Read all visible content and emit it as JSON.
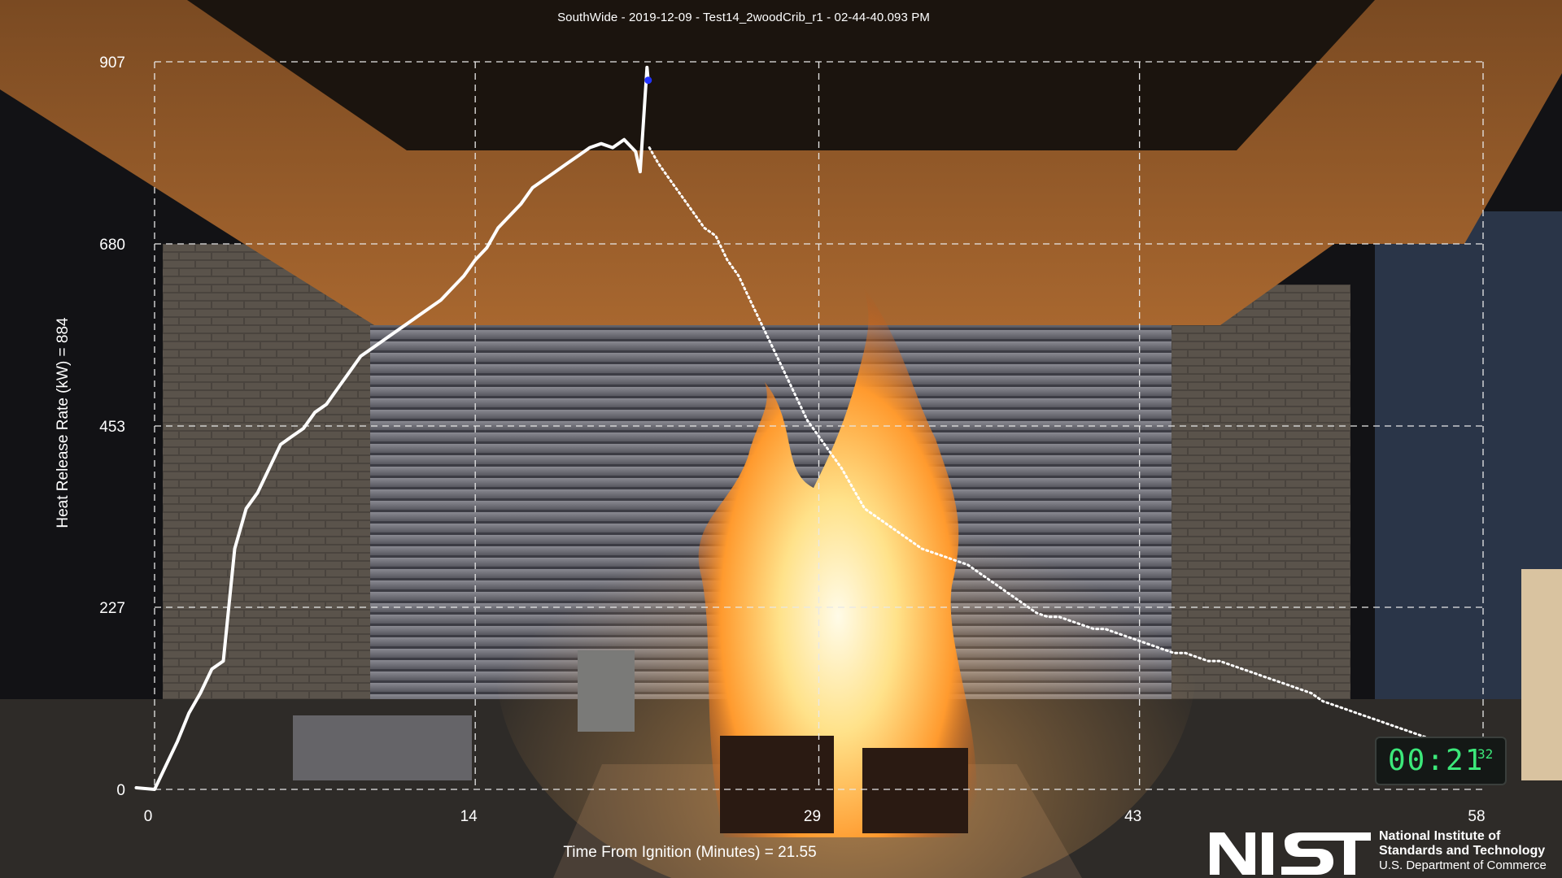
{
  "chart_data": {
    "type": "line",
    "title": "SouthWide - 2019-12-09 - Test14_2woodCrib_r1 - 02-44-40.093 PM",
    "ylabel": "Heat Release Rate (kW) = 884",
    "xlabel": "Time From Ignition (Minutes) = 21.55",
    "xlim": [
      0,
      58
    ],
    "ylim": [
      0,
      907
    ],
    "x_ticks": [
      0,
      14,
      29,
      43,
      58
    ],
    "y_ticks": [
      0,
      227,
      453,
      680,
      907
    ],
    "grid": true,
    "current_x": 21.55,
    "current_y": 884,
    "series": [
      {
        "style": "solid",
        "x": [
          -0.8,
          0,
          0.5,
          1,
          1.5,
          2,
          2.5,
          3,
          3.5,
          4,
          4.5,
          5,
          5.5,
          6,
          6.5,
          7,
          7.5,
          8,
          8.5,
          9,
          9.5,
          10,
          10.5,
          11,
          11.5,
          12,
          12.5,
          13,
          13.5,
          14,
          14.5,
          15,
          15.5,
          16,
          16.5,
          17,
          17.5,
          18,
          18.5,
          19,
          19.5,
          20,
          20.5,
          21,
          21.2,
          21.5,
          21.55
        ],
        "values": [
          2,
          0,
          30,
          60,
          95,
          120,
          150,
          160,
          300,
          350,
          370,
          400,
          430,
          440,
          450,
          470,
          480,
          500,
          520,
          540,
          550,
          560,
          570,
          580,
          590,
          600,
          610,
          625,
          640,
          660,
          675,
          700,
          715,
          730,
          750,
          760,
          770,
          780,
          790,
          800,
          805,
          800,
          810,
          795,
          770,
          900,
          884
        ]
      },
      {
        "style": "dotted",
        "x": [
          21.6,
          22,
          22.5,
          23,
          23.5,
          24,
          24.5,
          25,
          25.5,
          26,
          26.5,
          27,
          27.5,
          28,
          28.5,
          29,
          29.5,
          30,
          30.5,
          31,
          31.5,
          32,
          32.5,
          33,
          33.5,
          34,
          34.5,
          35,
          35.5,
          36,
          36.5,
          37,
          37.5,
          38,
          38.5,
          39,
          39.5,
          40,
          40.5,
          41,
          41.5,
          42,
          42.5,
          43,
          43.5,
          44,
          44.5,
          45,
          45.5,
          46,
          46.5,
          47,
          47.5,
          48,
          48.5,
          49,
          49.5,
          50,
          50.5,
          51,
          51.5,
          52,
          52.5,
          53,
          53.5,
          54,
          54.5,
          55,
          55.5,
          56,
          56.5,
          57,
          57.5
        ],
        "values": [
          800,
          780,
          760,
          740,
          720,
          700,
          690,
          660,
          640,
          610,
          580,
          550,
          520,
          490,
          460,
          440,
          420,
          400,
          375,
          350,
          340,
          330,
          320,
          310,
          300,
          295,
          290,
          285,
          280,
          270,
          260,
          250,
          240,
          230,
          220,
          215,
          215,
          210,
          205,
          200,
          200,
          195,
          190,
          185,
          180,
          175,
          170,
          170,
          165,
          160,
          160,
          155,
          150,
          145,
          140,
          135,
          130,
          125,
          120,
          110,
          105,
          100,
          95,
          90,
          85,
          80,
          75,
          70,
          65,
          60,
          55,
          50,
          45
        ]
      }
    ]
  },
  "timer": {
    "digits": "00:21",
    "sub": "32"
  },
  "logo": {
    "mark": "NIST",
    "line1": "National Institute of",
    "line2": "Standards and Technology",
    "line3": "U.S. Department of Commerce"
  }
}
